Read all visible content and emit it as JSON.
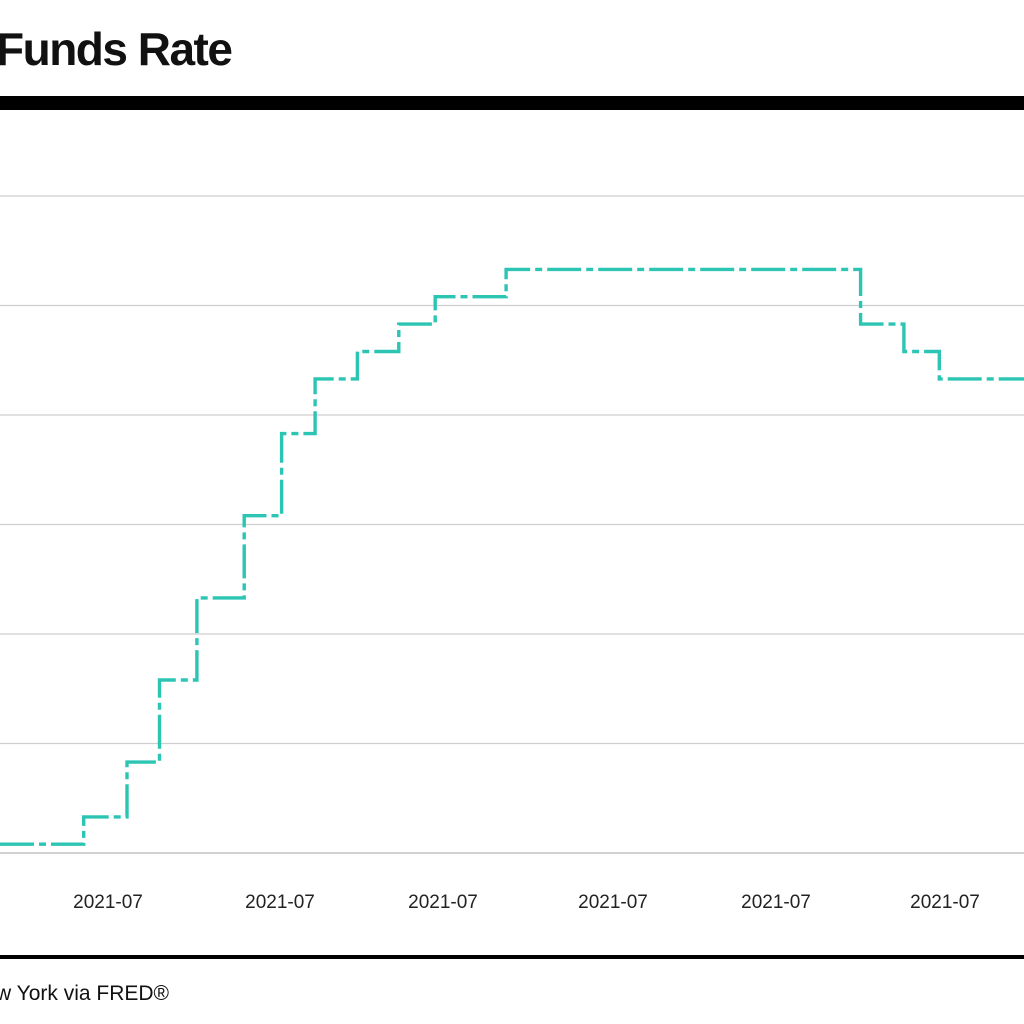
{
  "chart_data": {
    "type": "line",
    "title": "Funds Rate",
    "source": "w York via FRED®",
    "xlabel": "",
    "ylabel": "",
    "ylim": [
      0,
      6
    ],
    "grid": true,
    "legend": "none",
    "x_tick_labels": [
      "2021-07",
      "2021-07",
      "2021-07",
      "2021-07",
      "2021-07",
      "2021-07"
    ],
    "line_color": "#2cc5b4",
    "series": [
      {
        "name": "",
        "steps": [
          {
            "x": 0.0,
            "y": 0.08
          },
          {
            "x": 0.85,
            "y": 0.33
          },
          {
            "x": 1.29,
            "y": 0.83
          },
          {
            "x": 1.62,
            "y": 1.58
          },
          {
            "x": 2.0,
            "y": 2.33
          },
          {
            "x": 2.48,
            "y": 3.08
          },
          {
            "x": 2.86,
            "y": 3.83
          },
          {
            "x": 3.2,
            "y": 4.33
          },
          {
            "x": 3.63,
            "y": 4.58
          },
          {
            "x": 4.05,
            "y": 4.83
          },
          {
            "x": 4.42,
            "y": 5.08
          },
          {
            "x": 5.14,
            "y": 5.33
          },
          {
            "x": 8.74,
            "y": 4.83
          },
          {
            "x": 9.18,
            "y": 4.58
          },
          {
            "x": 9.54,
            "y": 4.33
          },
          {
            "x": 10.4,
            "y": 4.33
          }
        ]
      }
    ]
  }
}
